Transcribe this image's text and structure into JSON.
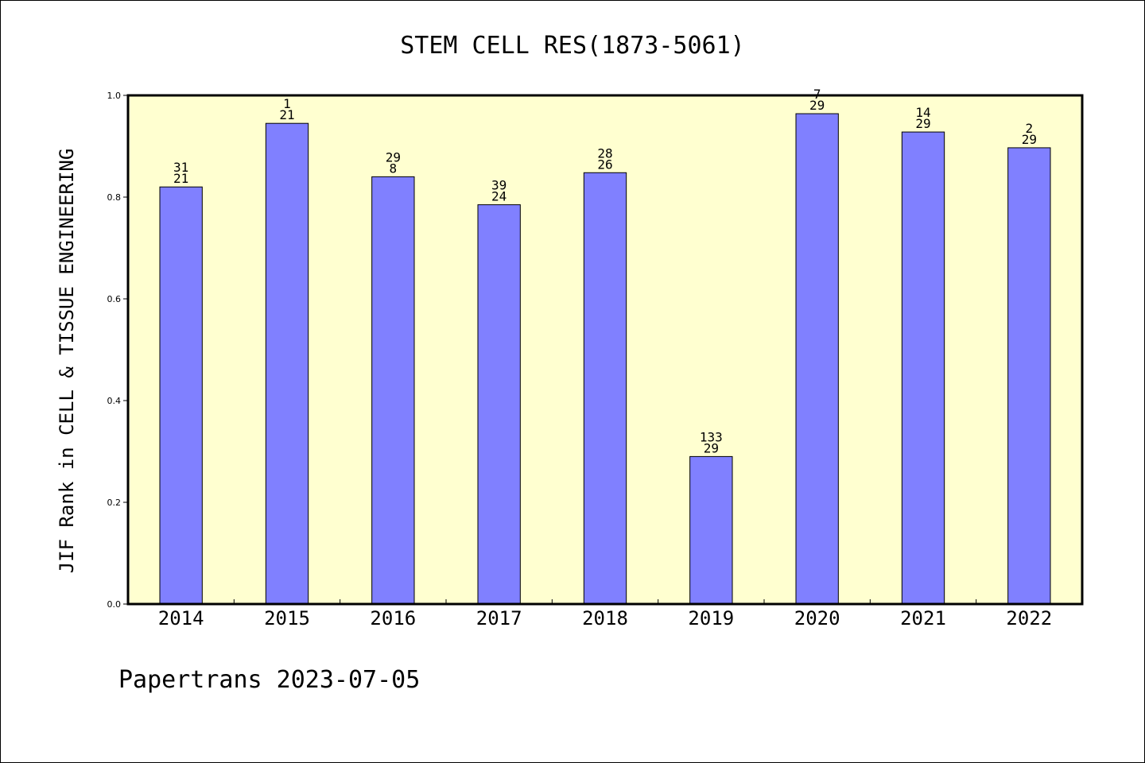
{
  "chart_data": {
    "type": "bar",
    "title": "STEM CELL RES(1873-5061)",
    "ylabel": "JIF Rank in CELL & TISSUE ENGINEERING",
    "xlabel": "",
    "categories": [
      "2014",
      "2015",
      "2016",
      "2017",
      "2018",
      "2019",
      "2020",
      "2021",
      "2022"
    ],
    "values": [
      0.82,
      0.945,
      0.84,
      0.785,
      0.848,
      0.29,
      0.964,
      0.928,
      0.897
    ],
    "annotations": [
      [
        "31",
        "21"
      ],
      [
        "1",
        "21"
      ],
      [
        "29",
        "8"
      ],
      [
        "39",
        "24"
      ],
      [
        "28",
        "26"
      ],
      [
        "133",
        "29"
      ],
      [
        "7",
        "29"
      ],
      [
        "14",
        "29"
      ],
      [
        "2",
        "29"
      ]
    ],
    "ylim": [
      0,
      1.0
    ],
    "yticks": [
      "0.0",
      "0.2",
      "0.4",
      "0.6",
      "0.8",
      "1.0"
    ],
    "grid": false,
    "colors": {
      "bar": "#8080ff",
      "plot_background": "#ffffd0",
      "axis": "#000000"
    }
  },
  "footer": "Papertrans 2023-07-05"
}
